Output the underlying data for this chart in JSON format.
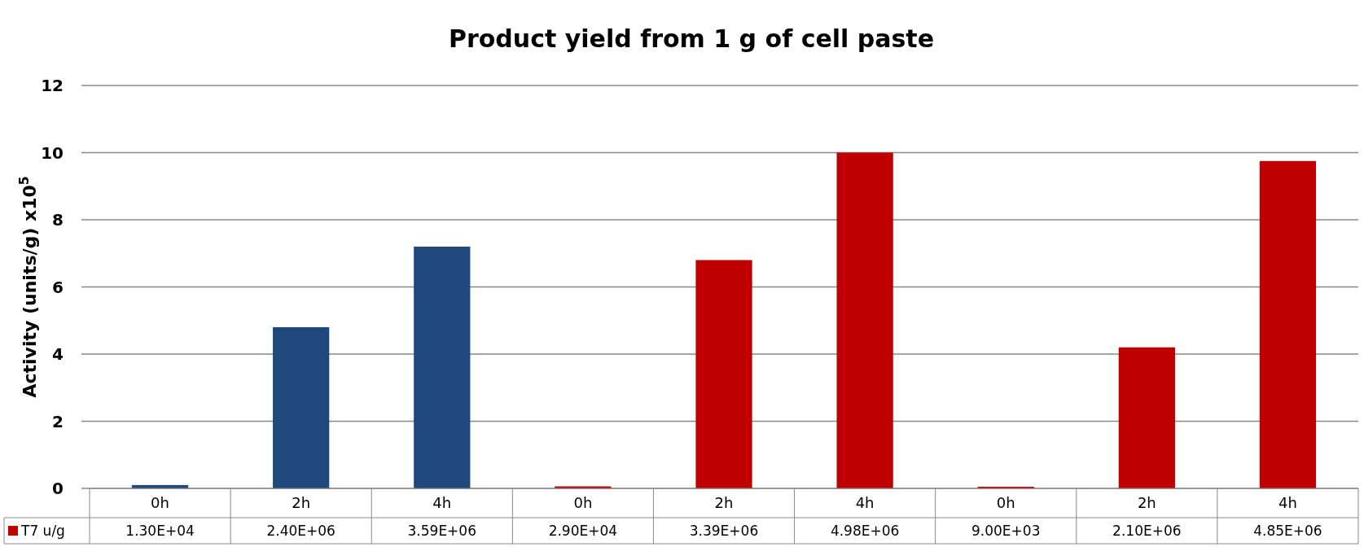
{
  "chart_data": {
    "type": "bar",
    "title": "Product yield from 1 g of  cell paste",
    "ylabel": "Activity (units/g) x10$^{5}$",
    "categories": [
      "0h",
      "2h",
      "4h",
      "0h",
      "2h",
      "4h",
      "0h",
      "2h",
      "4h"
    ],
    "series": [
      {
        "name": "T7 u/g",
        "color": "#c00000",
        "colors": [
          "#1f497d",
          "#1f497d",
          "#1f497d",
          "#c00000",
          "#c00000",
          "#c00000",
          "#c00000",
          "#c00000",
          "#c00000"
        ],
        "values": [
          0.1,
          4.8,
          7.2,
          0.06,
          6.8,
          10,
          0.05,
          4.2,
          9.75
        ]
      }
    ],
    "annotations": [
      "1.30E+04",
      "2.40E+06",
      "3.59E+06",
      "2.90E+04",
      "3.39E+06",
      "4.98E+06",
      "9.00E+03",
      "2.10E+06",
      "4.85E+06"
    ],
    "ylim": [
      0,
      12
    ],
    "yticks": [
      0,
      2,
      4,
      6,
      8,
      10,
      12
    ],
    "grid": "y",
    "legend": "bottom"
  }
}
